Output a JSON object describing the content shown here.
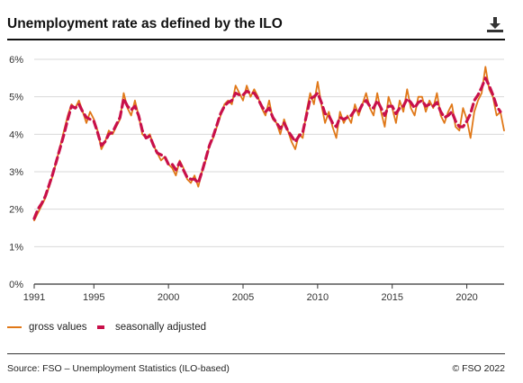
{
  "header": {
    "title": "Unemployment rate as defined by the ILO",
    "download_icon": "download-icon"
  },
  "legend": {
    "gross_label": "gross values",
    "sa_label": "seasonally adjusted"
  },
  "footer": {
    "source": "Source: FSO – Unemployment Statistics (ILO-based)",
    "copyright": "© FSO 2022"
  },
  "colors": {
    "gross": "#e07818",
    "seasonally_adjusted": "#c8104a",
    "grid": "#d9d9d9",
    "axis": "#333333"
  },
  "chart_data": {
    "type": "line",
    "title": "Unemployment rate as defined by the ILO",
    "xlabel": "",
    "ylabel": "",
    "xlim": [
      1991,
      2022.5
    ],
    "ylim": [
      0,
      6
    ],
    "x_ticks": [
      1991,
      1995,
      2000,
      2005,
      2010,
      2015,
      2020
    ],
    "y_ticks": [
      0,
      1,
      2,
      3,
      4,
      5,
      6
    ],
    "y_tick_labels": [
      "0%",
      "1%",
      "2%",
      "3%",
      "4%",
      "5%",
      "6%"
    ],
    "grid": "horizontal",
    "legend_position": "bottom-left",
    "series": [
      {
        "name": "gross values",
        "style": "solid",
        "points": [
          [
            1991.0,
            1.7
          ],
          [
            1991.25,
            1.9
          ],
          [
            1991.5,
            2.1
          ],
          [
            1991.75,
            2.3
          ],
          [
            1992.0,
            2.6
          ],
          [
            1992.25,
            2.9
          ],
          [
            1992.5,
            3.3
          ],
          [
            1992.75,
            3.7
          ],
          [
            1993.0,
            4.1
          ],
          [
            1993.25,
            4.5
          ],
          [
            1993.5,
            4.8
          ],
          [
            1993.75,
            4.7
          ],
          [
            1994.0,
            4.9
          ],
          [
            1994.25,
            4.6
          ],
          [
            1994.5,
            4.3
          ],
          [
            1994.75,
            4.6
          ],
          [
            1995.0,
            4.4
          ],
          [
            1995.25,
            4.1
          ],
          [
            1995.5,
            3.6
          ],
          [
            1995.75,
            3.8
          ],
          [
            1996.0,
            4.1
          ],
          [
            1996.25,
            4.0
          ],
          [
            1996.5,
            4.2
          ],
          [
            1996.75,
            4.4
          ],
          [
            1997.0,
            5.1
          ],
          [
            1997.25,
            4.7
          ],
          [
            1997.5,
            4.5
          ],
          [
            1997.75,
            4.9
          ],
          [
            1998.0,
            4.5
          ],
          [
            1998.25,
            4.0
          ],
          [
            1998.5,
            3.9
          ],
          [
            1998.75,
            4.0
          ],
          [
            1999.0,
            3.7
          ],
          [
            1999.25,
            3.5
          ],
          [
            1999.5,
            3.3
          ],
          [
            1999.75,
            3.4
          ],
          [
            2000.0,
            3.2
          ],
          [
            2000.25,
            3.1
          ],
          [
            2000.5,
            2.9
          ],
          [
            2000.75,
            3.3
          ],
          [
            2001.0,
            3.1
          ],
          [
            2001.25,
            2.8
          ],
          [
            2001.5,
            2.7
          ],
          [
            2001.75,
            2.9
          ],
          [
            2002.0,
            2.6
          ],
          [
            2002.25,
            3.0
          ],
          [
            2002.5,
            3.3
          ],
          [
            2002.75,
            3.7
          ],
          [
            2003.0,
            3.9
          ],
          [
            2003.25,
            4.2
          ],
          [
            2003.5,
            4.5
          ],
          [
            2003.75,
            4.8
          ],
          [
            2004.0,
            4.9
          ],
          [
            2004.25,
            4.8
          ],
          [
            2004.5,
            5.3
          ],
          [
            2004.75,
            5.1
          ],
          [
            2005.0,
            4.9
          ],
          [
            2005.25,
            5.3
          ],
          [
            2005.5,
            5.0
          ],
          [
            2005.75,
            5.2
          ],
          [
            2006.0,
            5.0
          ],
          [
            2006.25,
            4.7
          ],
          [
            2006.5,
            4.5
          ],
          [
            2006.75,
            4.9
          ],
          [
            2007.0,
            4.4
          ],
          [
            2007.25,
            4.3
          ],
          [
            2007.5,
            4.0
          ],
          [
            2007.75,
            4.4
          ],
          [
            2008.0,
            4.1
          ],
          [
            2008.25,
            3.8
          ],
          [
            2008.5,
            3.6
          ],
          [
            2008.75,
            4.0
          ],
          [
            2009.0,
            3.9
          ],
          [
            2009.25,
            4.6
          ],
          [
            2009.5,
            5.1
          ],
          [
            2009.75,
            4.8
          ],
          [
            2010.0,
            5.4
          ],
          [
            2010.25,
            4.8
          ],
          [
            2010.5,
            4.3
          ],
          [
            2010.75,
            4.6
          ],
          [
            2011.0,
            4.2
          ],
          [
            2011.25,
            3.9
          ],
          [
            2011.5,
            4.6
          ],
          [
            2011.75,
            4.3
          ],
          [
            2012.0,
            4.5
          ],
          [
            2012.25,
            4.3
          ],
          [
            2012.5,
            4.8
          ],
          [
            2012.75,
            4.5
          ],
          [
            2013.0,
            4.8
          ],
          [
            2013.25,
            5.1
          ],
          [
            2013.5,
            4.7
          ],
          [
            2013.75,
            4.5
          ],
          [
            2014.0,
            5.1
          ],
          [
            2014.25,
            4.6
          ],
          [
            2014.5,
            4.2
          ],
          [
            2014.75,
            5.0
          ],
          [
            2015.0,
            4.7
          ],
          [
            2015.25,
            4.3
          ],
          [
            2015.5,
            4.9
          ],
          [
            2015.75,
            4.6
          ],
          [
            2016.0,
            5.2
          ],
          [
            2016.25,
            4.7
          ],
          [
            2016.5,
            4.5
          ],
          [
            2016.75,
            5.0
          ],
          [
            2017.0,
            5.0
          ],
          [
            2017.25,
            4.6
          ],
          [
            2017.5,
            4.9
          ],
          [
            2017.75,
            4.7
          ],
          [
            2018.0,
            5.1
          ],
          [
            2018.25,
            4.5
          ],
          [
            2018.5,
            4.3
          ],
          [
            2018.75,
            4.6
          ],
          [
            2019.0,
            4.8
          ],
          [
            2019.25,
            4.2
          ],
          [
            2019.5,
            4.1
          ],
          [
            2019.75,
            4.7
          ],
          [
            2020.0,
            4.4
          ],
          [
            2020.25,
            3.9
          ],
          [
            2020.5,
            4.6
          ],
          [
            2020.75,
            4.9
          ],
          [
            2021.0,
            5.1
          ],
          [
            2021.25,
            5.8
          ],
          [
            2021.5,
            5.2
          ],
          [
            2021.75,
            5.0
          ],
          [
            2022.0,
            4.5
          ],
          [
            2022.25,
            4.6
          ],
          [
            2022.5,
            4.1
          ]
        ]
      },
      {
        "name": "seasonally adjusted",
        "style": "dashed",
        "points": [
          [
            1991.0,
            1.75
          ],
          [
            1991.25,
            2.0
          ],
          [
            1991.5,
            2.15
          ],
          [
            1991.75,
            2.35
          ],
          [
            1992.0,
            2.65
          ],
          [
            1992.25,
            2.95
          ],
          [
            1992.5,
            3.3
          ],
          [
            1992.75,
            3.65
          ],
          [
            1993.0,
            4.0
          ],
          [
            1993.25,
            4.4
          ],
          [
            1993.5,
            4.75
          ],
          [
            1993.75,
            4.7
          ],
          [
            1994.0,
            4.8
          ],
          [
            1994.25,
            4.6
          ],
          [
            1994.5,
            4.45
          ],
          [
            1994.75,
            4.4
          ],
          [
            1995.0,
            4.35
          ],
          [
            1995.25,
            4.05
          ],
          [
            1995.5,
            3.7
          ],
          [
            1995.75,
            3.8
          ],
          [
            1996.0,
            4.0
          ],
          [
            1996.25,
            4.05
          ],
          [
            1996.5,
            4.25
          ],
          [
            1996.75,
            4.45
          ],
          [
            1997.0,
            4.95
          ],
          [
            1997.25,
            4.75
          ],
          [
            1997.5,
            4.65
          ],
          [
            1997.75,
            4.75
          ],
          [
            1998.0,
            4.5
          ],
          [
            1998.25,
            4.1
          ],
          [
            1998.5,
            3.9
          ],
          [
            1998.75,
            3.95
          ],
          [
            1999.0,
            3.7
          ],
          [
            1999.25,
            3.5
          ],
          [
            1999.5,
            3.45
          ],
          [
            1999.75,
            3.4
          ],
          [
            2000.0,
            3.2
          ],
          [
            2000.25,
            3.2
          ],
          [
            2000.5,
            3.05
          ],
          [
            2000.75,
            3.25
          ],
          [
            2001.0,
            3.05
          ],
          [
            2001.25,
            2.85
          ],
          [
            2001.5,
            2.8
          ],
          [
            2001.75,
            2.8
          ],
          [
            2002.0,
            2.7
          ],
          [
            2002.25,
            3.0
          ],
          [
            2002.5,
            3.35
          ],
          [
            2002.75,
            3.7
          ],
          [
            2003.0,
            3.95
          ],
          [
            2003.25,
            4.25
          ],
          [
            2003.5,
            4.55
          ],
          [
            2003.75,
            4.75
          ],
          [
            2004.0,
            4.85
          ],
          [
            2004.25,
            4.9
          ],
          [
            2004.5,
            5.1
          ],
          [
            2004.75,
            5.05
          ],
          [
            2005.0,
            5.05
          ],
          [
            2005.25,
            5.15
          ],
          [
            2005.5,
            5.1
          ],
          [
            2005.75,
            5.1
          ],
          [
            2006.0,
            4.95
          ],
          [
            2006.25,
            4.75
          ],
          [
            2006.5,
            4.6
          ],
          [
            2006.75,
            4.7
          ],
          [
            2007.0,
            4.45
          ],
          [
            2007.25,
            4.3
          ],
          [
            2007.5,
            4.15
          ],
          [
            2007.75,
            4.3
          ],
          [
            2008.0,
            4.1
          ],
          [
            2008.25,
            3.95
          ],
          [
            2008.5,
            3.8
          ],
          [
            2008.75,
            3.95
          ],
          [
            2009.0,
            4.05
          ],
          [
            2009.25,
            4.5
          ],
          [
            2009.5,
            4.95
          ],
          [
            2009.75,
            5.0
          ],
          [
            2010.0,
            5.1
          ],
          [
            2010.25,
            4.85
          ],
          [
            2010.5,
            4.55
          ],
          [
            2010.75,
            4.5
          ],
          [
            2011.0,
            4.3
          ],
          [
            2011.25,
            4.2
          ],
          [
            2011.5,
            4.45
          ],
          [
            2011.75,
            4.4
          ],
          [
            2012.0,
            4.45
          ],
          [
            2012.25,
            4.5
          ],
          [
            2012.5,
            4.65
          ],
          [
            2012.75,
            4.6
          ],
          [
            2013.0,
            4.8
          ],
          [
            2013.25,
            4.9
          ],
          [
            2013.5,
            4.75
          ],
          [
            2013.75,
            4.7
          ],
          [
            2014.0,
            4.9
          ],
          [
            2014.25,
            4.7
          ],
          [
            2014.5,
            4.5
          ],
          [
            2014.75,
            4.75
          ],
          [
            2015.0,
            4.75
          ],
          [
            2015.25,
            4.55
          ],
          [
            2015.5,
            4.7
          ],
          [
            2015.75,
            4.75
          ],
          [
            2016.0,
            4.95
          ],
          [
            2016.25,
            4.85
          ],
          [
            2016.5,
            4.7
          ],
          [
            2016.75,
            4.85
          ],
          [
            2017.0,
            4.9
          ],
          [
            2017.25,
            4.75
          ],
          [
            2017.5,
            4.8
          ],
          [
            2017.75,
            4.75
          ],
          [
            2018.0,
            4.85
          ],
          [
            2018.25,
            4.6
          ],
          [
            2018.5,
            4.45
          ],
          [
            2018.75,
            4.5
          ],
          [
            2019.0,
            4.6
          ],
          [
            2019.25,
            4.35
          ],
          [
            2019.5,
            4.2
          ],
          [
            2019.75,
            4.2
          ],
          [
            2020.0,
            4.35
          ],
          [
            2020.25,
            4.55
          ],
          [
            2020.5,
            4.9
          ],
          [
            2020.75,
            5.05
          ],
          [
            2021.0,
            5.25
          ],
          [
            2021.25,
            5.5
          ],
          [
            2021.5,
            5.3
          ],
          [
            2021.75,
            5.05
          ],
          [
            2022.0,
            4.75
          ],
          [
            2022.25,
            4.6
          ]
        ]
      }
    ]
  }
}
